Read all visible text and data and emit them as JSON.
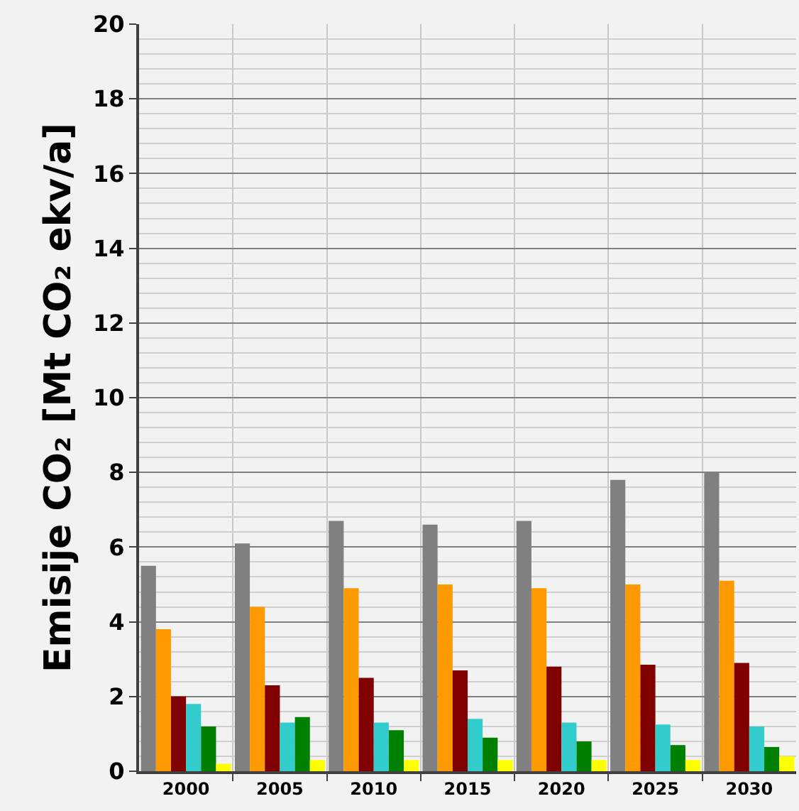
{
  "chart_data": {
    "type": "bar",
    "ylabel": "Emisije CO₂ [Mt CO₂ ekv/a]",
    "categories": [
      "2000",
      "2005",
      "2010",
      "2015",
      "2020",
      "2025",
      "2030"
    ],
    "series": [
      {
        "color": "#808080",
        "values": [
          5.5,
          6.1,
          6.7,
          6.6,
          6.7,
          7.8,
          8.0
        ]
      },
      {
        "color": "#ff9900",
        "values": [
          3.8,
          4.4,
          4.9,
          5.0,
          4.9,
          5.0,
          5.1
        ]
      },
      {
        "color": "#800000",
        "values": [
          2.0,
          2.3,
          2.5,
          2.7,
          2.8,
          2.85,
          2.9
        ]
      },
      {
        "color": "#33cccc",
        "values": [
          1.8,
          1.3,
          1.3,
          1.4,
          1.3,
          1.25,
          1.2
        ]
      },
      {
        "color": "#008000",
        "values": [
          1.2,
          1.45,
          1.1,
          0.9,
          0.8,
          0.7,
          0.65
        ]
      },
      {
        "color": "#ffff00",
        "values": [
          0.2,
          0.3,
          0.3,
          0.3,
          0.3,
          0.3,
          0.4
        ]
      }
    ],
    "ylim": [
      0,
      20
    ],
    "yticks": [
      0,
      2,
      4,
      6,
      8,
      10,
      12,
      14,
      16,
      18,
      20
    ],
    "grid": true
  }
}
